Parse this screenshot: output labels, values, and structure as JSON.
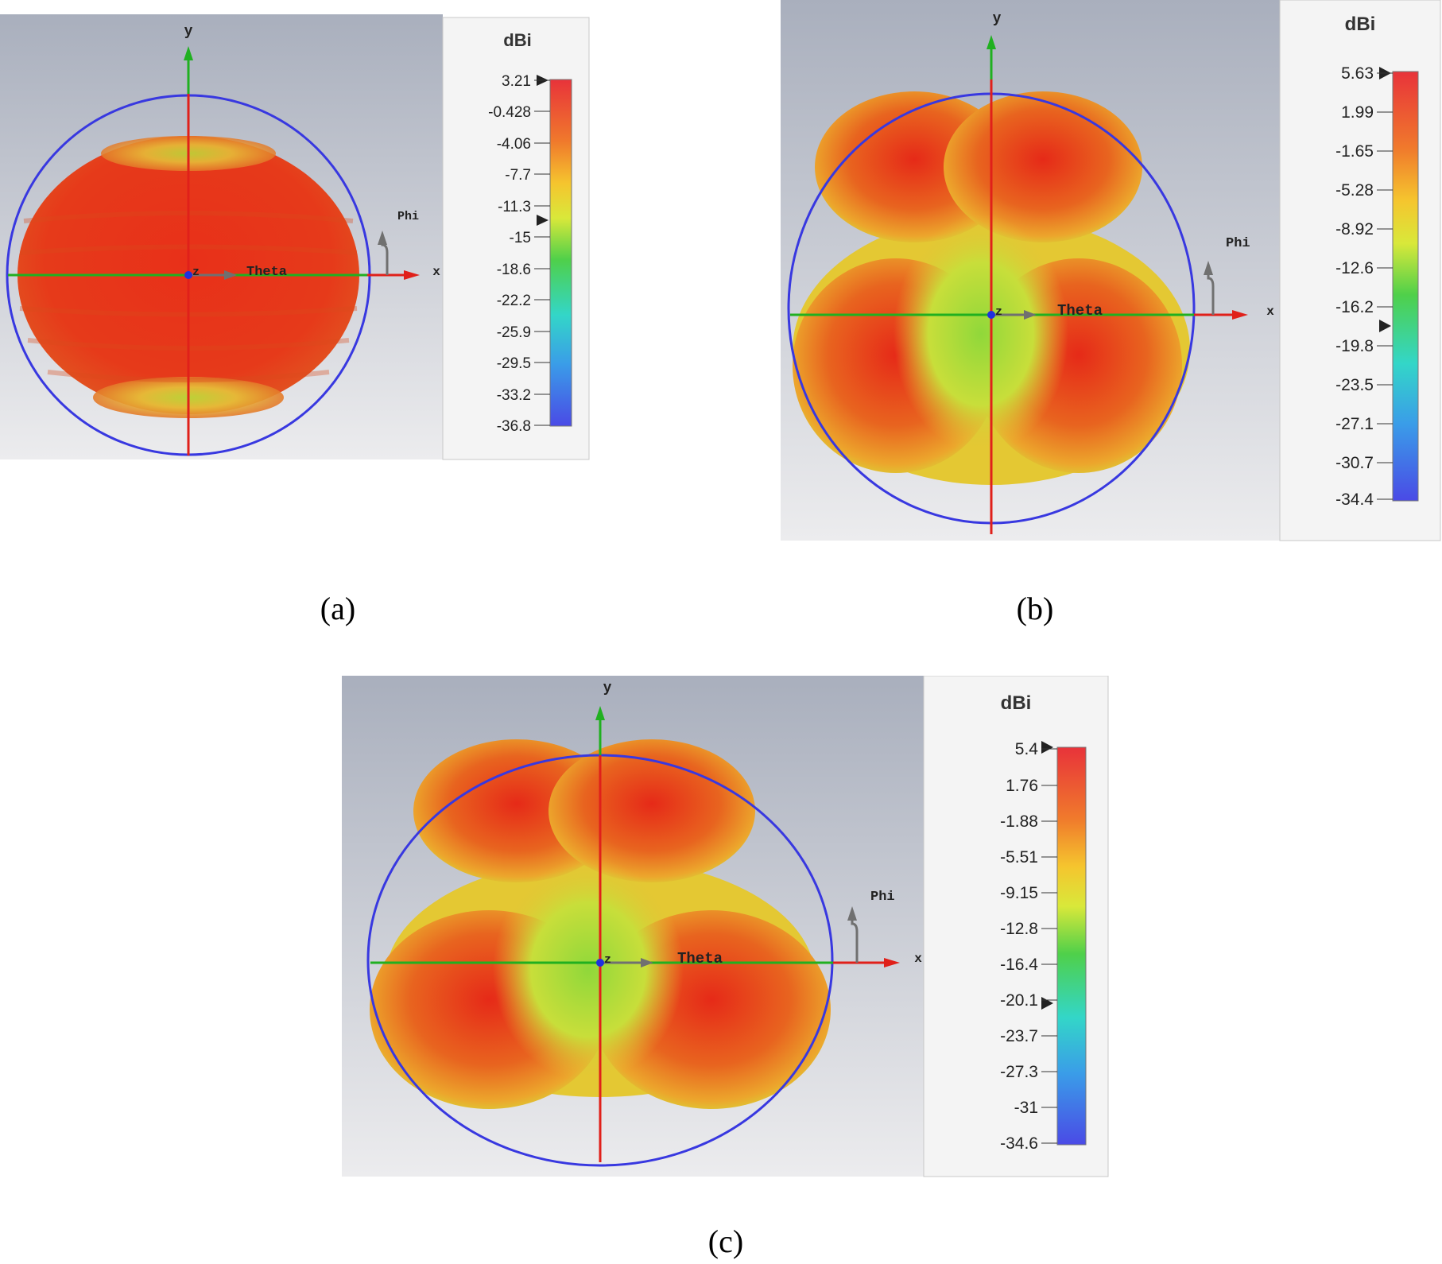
{
  "figure": {
    "panels": [
      {
        "caption": "(a)",
        "unit": "dBi",
        "ticks": [
          "3.21",
          "-0.428",
          "-4.06",
          "-7.7",
          "-11.3",
          "-15",
          "-18.6",
          "-22.2",
          "-25.9",
          "-29.5",
          "-33.2",
          "-36.8"
        ],
        "shape": "sphere"
      },
      {
        "caption": "(b)",
        "unit": "dBi",
        "ticks": [
          "5.63",
          "1.99",
          "-1.65",
          "-5.28",
          "-8.92",
          "-12.6",
          "-16.2",
          "-19.8",
          "-23.5",
          "-27.1",
          "-30.7",
          "-34.4"
        ],
        "shape": "four-lobe"
      },
      {
        "caption": "(c)",
        "unit": "dBi",
        "ticks": [
          "5.4",
          "1.76",
          "-1.88",
          "-5.51",
          "-9.15",
          "-12.8",
          "-16.4",
          "-20.1",
          "-23.7",
          "-27.3",
          "-31",
          "-34.6"
        ],
        "shape": "four-lobe"
      }
    ],
    "axis_labels": {
      "y": "y",
      "x": "x",
      "z": "z",
      "theta": "Theta",
      "phi": "Phi"
    }
  }
}
